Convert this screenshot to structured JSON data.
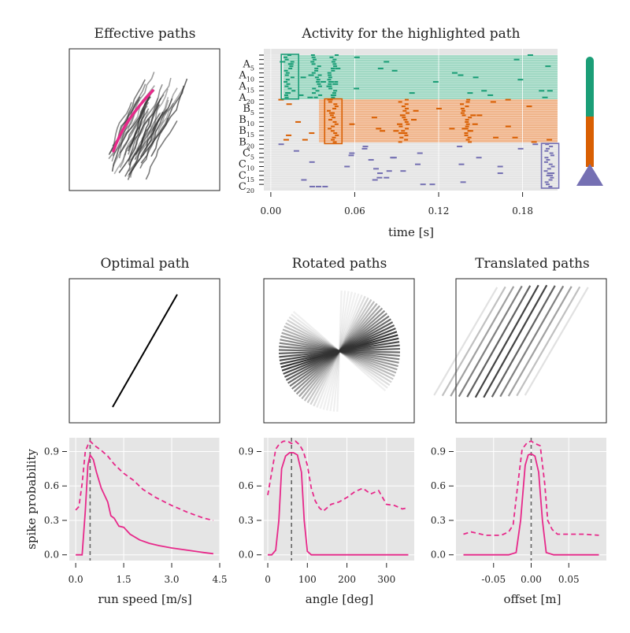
{
  "chart_data": [
    {
      "id": "effective_paths",
      "type": "line",
      "title": "Effective paths",
      "highlight_color": "#e7298a"
    },
    {
      "id": "activity",
      "type": "scatter",
      "title": "Activity for the highlighted path",
      "xlabel": "time [s]",
      "xlim": [
        -0.005,
        0.205
      ],
      "xticks": [
        "0.00",
        "0.06",
        "0.12",
        "0.18"
      ],
      "ytick_labels": [
        {
          "base": "A",
          "sub": "5"
        },
        {
          "base": "A",
          "sub": "10"
        },
        {
          "base": "A",
          "sub": "15"
        },
        {
          "base": "A",
          "sub": "20"
        },
        {
          "base": "B",
          "sub": "5"
        },
        {
          "base": "B",
          "sub": "10"
        },
        {
          "base": "B",
          "sub": "15"
        },
        {
          "base": "B",
          "sub": "20"
        },
        {
          "base": "C",
          "sub": "5"
        },
        {
          "base": "C",
          "sub": "10"
        },
        {
          "base": "C",
          "sub": "15"
        },
        {
          "base": "C",
          "sub": "20"
        }
      ],
      "groups": [
        {
          "name": "A",
          "color": "#1b9e77",
          "band_color": "#9fd8c3"
        },
        {
          "name": "B",
          "color": "#d95f02",
          "band_color": "#f0b48a"
        },
        {
          "name": "C",
          "color": "#7570b3",
          "band_color": "#e6e6e6"
        }
      ],
      "bursts": [
        {
          "group": "A",
          "time": 0.012,
          "boxed": true
        },
        {
          "group": "A",
          "time": 0.031
        },
        {
          "group": "A",
          "time": 0.043
        },
        {
          "group": "B",
          "time": 0.043,
          "boxed": true
        },
        {
          "group": "B",
          "time": 0.094
        },
        {
          "group": "B",
          "time": 0.138
        },
        {
          "group": "C",
          "time": 0.198,
          "boxed": true
        }
      ]
    },
    {
      "id": "optimal_path",
      "type": "line",
      "title": "Optimal path"
    },
    {
      "id": "rotated_paths",
      "type": "line",
      "title": "Rotated paths"
    },
    {
      "id": "translated_paths",
      "type": "line",
      "title": "Translated paths"
    },
    {
      "id": "speed",
      "type": "line",
      "xlabel": "run speed [m/s]",
      "ylabel": "spike probability",
      "xlim": [
        -0.2,
        4.5
      ],
      "ylim": [
        -0.05,
        1.02
      ],
      "xticks": [
        0,
        1.5,
        3.0,
        4.5
      ],
      "xtick_labels": [
        "0.0",
        "1.5",
        "3.0",
        "4.5"
      ],
      "yticks": [
        0,
        0.3,
        0.6,
        0.9
      ],
      "ytick_labels": [
        "0.0",
        "0.3",
        "0.6",
        "0.9"
      ],
      "vline": 0.45,
      "series": [
        {
          "style": "solid",
          "color": "#e7298a",
          "x": [
            0,
            0.2,
            0.3,
            0.38,
            0.45,
            0.55,
            0.65,
            0.8,
            1.0,
            1.1,
            1.2,
            1.35,
            1.5,
            1.7,
            2.0,
            2.3,
            2.6,
            3.0,
            3.5,
            4.0,
            4.3
          ],
          "y": [
            0.0,
            0.0,
            0.38,
            0.78,
            0.87,
            0.83,
            0.72,
            0.58,
            0.46,
            0.34,
            0.32,
            0.25,
            0.24,
            0.18,
            0.13,
            0.1,
            0.08,
            0.06,
            0.04,
            0.02,
            0.01
          ]
        },
        {
          "style": "dashed",
          "color": "#e7298a",
          "x": [
            0,
            0.1,
            0.2,
            0.3,
            0.4,
            0.45,
            0.6,
            0.8,
            1.0,
            1.2,
            1.5,
            1.8,
            2.1,
            2.5,
            3.0,
            3.5,
            4.0,
            4.3
          ],
          "y": [
            0.39,
            0.42,
            0.62,
            0.9,
            0.97,
            0.99,
            0.95,
            0.91,
            0.86,
            0.79,
            0.71,
            0.65,
            0.57,
            0.5,
            0.43,
            0.37,
            0.32,
            0.3
          ]
        }
      ]
    },
    {
      "id": "angle",
      "type": "line",
      "xlabel": "angle [deg]",
      "xlim": [
        -10,
        370
      ],
      "ylim": [
        -0.05,
        1.02
      ],
      "xticks": [
        0,
        100,
        200,
        300
      ],
      "xtick_labels": [
        "0",
        "100",
        "200",
        "300"
      ],
      "yticks": [
        0,
        0.3,
        0.6,
        0.9
      ],
      "ytick_labels": [
        "0.0",
        "0.3",
        "0.6",
        "0.9"
      ],
      "vline": 60,
      "series": [
        {
          "style": "solid",
          "color": "#e7298a",
          "x": [
            0,
            10,
            20,
            28,
            35,
            45,
            55,
            65,
            75,
            85,
            92,
            100,
            110,
            150,
            200,
            250,
            300,
            355
          ],
          "y": [
            0.0,
            0.0,
            0.04,
            0.3,
            0.75,
            0.86,
            0.89,
            0.89,
            0.87,
            0.72,
            0.3,
            0.03,
            0.0,
            0.0,
            0.0,
            0.0,
            0.0,
            0.0
          ]
        },
        {
          "style": "dashed",
          "color": "#e7298a",
          "x": [
            0,
            10,
            20,
            30,
            40,
            50,
            60,
            70,
            80,
            90,
            100,
            110,
            120,
            130,
            140,
            160,
            180,
            200,
            220,
            240,
            260,
            280,
            300,
            320,
            340,
            355
          ],
          "y": [
            0.52,
            0.72,
            0.92,
            0.97,
            0.99,
            0.99,
            0.97,
            0.99,
            0.96,
            0.9,
            0.78,
            0.58,
            0.47,
            0.41,
            0.38,
            0.44,
            0.46,
            0.5,
            0.55,
            0.58,
            0.53,
            0.56,
            0.44,
            0.43,
            0.4,
            0.41
          ]
        }
      ]
    },
    {
      "id": "offset",
      "type": "line",
      "xlabel": "offset [m]",
      "xlim": [
        -0.1,
        0.1
      ],
      "ylim": [
        -0.05,
        1.02
      ],
      "xticks": [
        -0.05,
        0,
        0.05
      ],
      "xtick_labels": [
        "-0.05",
        "0.00",
        "0.05"
      ],
      "yticks": [
        0,
        0.3,
        0.6,
        0.9
      ],
      "ytick_labels": [
        "0.0",
        "0.3",
        "0.6",
        "0.9"
      ],
      "vline": 0,
      "series": [
        {
          "style": "solid",
          "color": "#e7298a",
          "x": [
            -0.09,
            -0.03,
            -0.02,
            -0.014,
            -0.008,
            -0.004,
            0.0,
            0.005,
            0.01,
            0.015,
            0.02,
            0.03,
            0.09
          ],
          "y": [
            0.0,
            0.0,
            0.02,
            0.3,
            0.78,
            0.87,
            0.88,
            0.86,
            0.72,
            0.3,
            0.02,
            0.0,
            0.0
          ]
        },
        {
          "style": "dashed",
          "color": "#e7298a",
          "x": [
            -0.09,
            -0.08,
            -0.06,
            -0.04,
            -0.03,
            -0.024,
            -0.018,
            -0.012,
            -0.005,
            0.0,
            0.005,
            0.012,
            0.018,
            0.022,
            0.028,
            0.035,
            0.05,
            0.07,
            0.09
          ],
          "y": [
            0.18,
            0.2,
            0.17,
            0.17,
            0.2,
            0.26,
            0.6,
            0.92,
            0.98,
            0.99,
            0.97,
            0.95,
            0.62,
            0.3,
            0.22,
            0.18,
            0.18,
            0.18,
            0.17
          ]
        }
      ]
    }
  ]
}
